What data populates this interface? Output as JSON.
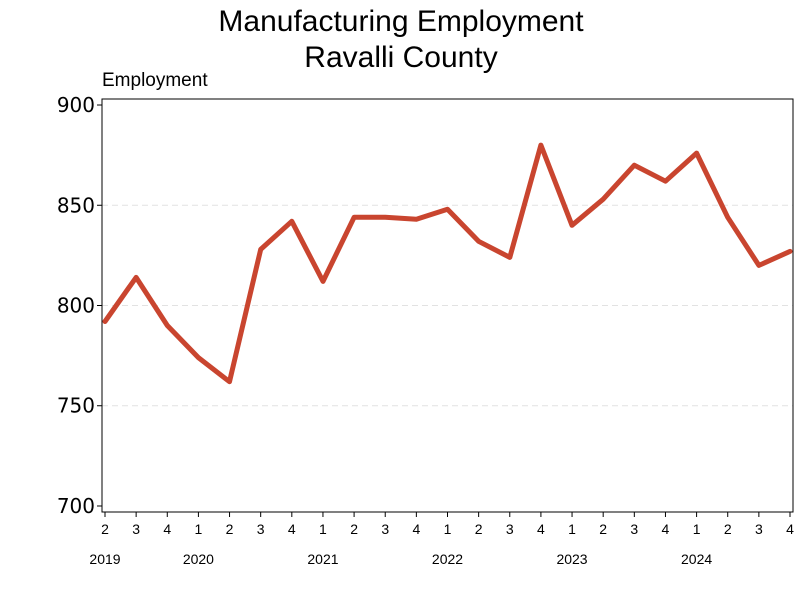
{
  "chart_data": {
    "type": "line",
    "title": [
      "Manufacturing Employment",
      "Ravalli County"
    ],
    "ylabel": "Employment",
    "xlabel": "",
    "ylim": [
      697,
      903
    ],
    "yticks": [
      700,
      750,
      800,
      850,
      900
    ],
    "grid": "horizontal dashed",
    "color": "#c9452f",
    "x": [
      "2019 Q2",
      "2019 Q3",
      "2019 Q4",
      "2020 Q1",
      "2020 Q2",
      "2020 Q3",
      "2020 Q4",
      "2021 Q1",
      "2021 Q2",
      "2021 Q3",
      "2021 Q4",
      "2022 Q1",
      "2022 Q2",
      "2022 Q3",
      "2022 Q4",
      "2023 Q1",
      "2023 Q2",
      "2023 Q3",
      "2023 Q4",
      "2024 Q1",
      "2024 Q2",
      "2024 Q3",
      "2024 Q4"
    ],
    "quarter_labels": [
      "2",
      "3",
      "4",
      "1",
      "2",
      "3",
      "4",
      "1",
      "2",
      "3",
      "4",
      "1",
      "2",
      "3",
      "4",
      "1",
      "2",
      "3",
      "4",
      "1",
      "2",
      "3",
      "4"
    ],
    "year_labels": [
      {
        "label": "2019",
        "index": 0
      },
      {
        "label": "2020",
        "index": 3
      },
      {
        "label": "2021",
        "index": 7
      },
      {
        "label": "2022",
        "index": 11
      },
      {
        "label": "2023",
        "index": 15
      },
      {
        "label": "2024",
        "index": 19
      }
    ],
    "series": [
      {
        "values": [
          792,
          814,
          790,
          774,
          762,
          828,
          842,
          812,
          844,
          844,
          843,
          848,
          832,
          824,
          880,
          840,
          853,
          870,
          862,
          876,
          844,
          820,
          827
        ]
      }
    ]
  }
}
